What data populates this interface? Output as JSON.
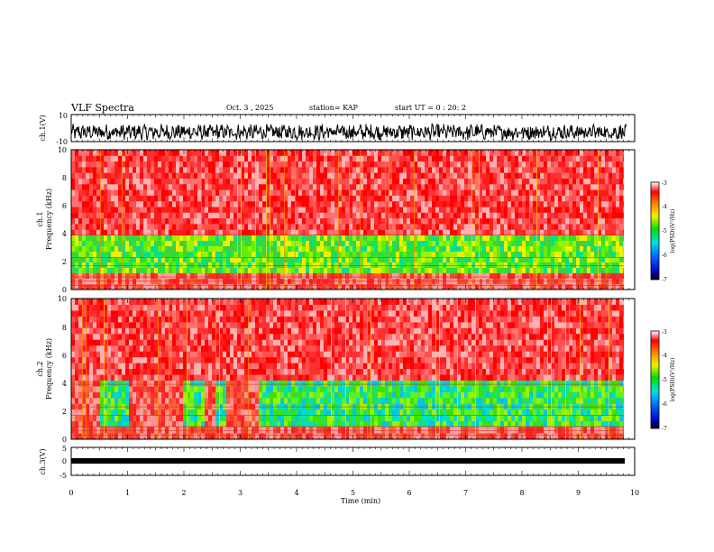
{
  "header": {
    "title": "VLF Spectra",
    "date": "Oct. 3 , 2025",
    "station": "station= KAP",
    "start": "start  UT =   0 : 20: 2"
  },
  "chart_data": [
    {
      "type": "line",
      "panel": "ch1-waveform",
      "ylabel": "ch.1(V)",
      "ylim": [
        -10,
        10
      ],
      "yticks": [
        "10",
        "-10"
      ],
      "xlim": [
        0,
        10
      ],
      "data_end_min": 9.85,
      "description_of_trace": "noisy signal oscillating roughly between -8 and 2 V"
    },
    {
      "type": "heatmap",
      "panel": "ch1-spectrogram",
      "ylabel_top": "ch.1",
      "ylabel": "Frequency (kHz)",
      "ylim": [
        0,
        10
      ],
      "yticks": [
        "0",
        "2",
        "4",
        "6",
        "8",
        "10"
      ],
      "xlim": [
        0,
        10
      ],
      "bands_khz": [
        {
          "from": 0.0,
          "to": 1.2,
          "level": "red-with-lines"
        },
        {
          "from": 1.2,
          "to": 3.9,
          "level": "green"
        },
        {
          "from": 3.9,
          "to": 10.0,
          "level": "red-noisy"
        }
      ],
      "colorbar": {
        "label": "log(PSD)(V²/Hz)",
        "ticks": [
          "-3",
          "-4",
          "-5",
          "-6",
          "-7"
        ],
        "range": [
          -7,
          -3
        ]
      }
    },
    {
      "type": "heatmap",
      "panel": "ch2-spectrogram",
      "ylabel_top": "ch.2",
      "ylabel": "Frequency (kHz)",
      "ylim": [
        0,
        10
      ],
      "yticks": [
        "0",
        "2",
        "4",
        "6",
        "8",
        "10"
      ],
      "xlim": [
        0,
        10
      ],
      "bands_khz": [
        {
          "from": 0.0,
          "to": 0.9,
          "level": "red-with-lines"
        },
        {
          "from": 0.9,
          "to": 4.2,
          "level": "green-cyan"
        },
        {
          "from": 4.2,
          "to": 10.0,
          "level": "red-noisy"
        }
      ],
      "red_intervals_min": [
        [
          0.0,
          0.45
        ],
        [
          1.0,
          1.95
        ],
        [
          2.35,
          2.5
        ],
        [
          2.75,
          3.3
        ]
      ],
      "colorbar": {
        "label": "log(PSD)(V²/Hz)",
        "ticks": [
          "-3",
          "-4",
          "-5",
          "-6",
          "-7"
        ],
        "range": [
          -7,
          -3
        ]
      }
    },
    {
      "type": "line",
      "panel": "ch3-waveform",
      "ylabel": "ch.3(V)",
      "ylim": [
        -5,
        5
      ],
      "yticks": [
        "5",
        "0",
        "-5"
      ],
      "xlim": [
        0,
        10
      ],
      "level_v": -0.8,
      "xlabel": "Time (min)",
      "xticks": [
        "0",
        "1",
        "2",
        "3",
        "4",
        "5",
        "6",
        "7",
        "8",
        "9",
        "10"
      ]
    }
  ]
}
